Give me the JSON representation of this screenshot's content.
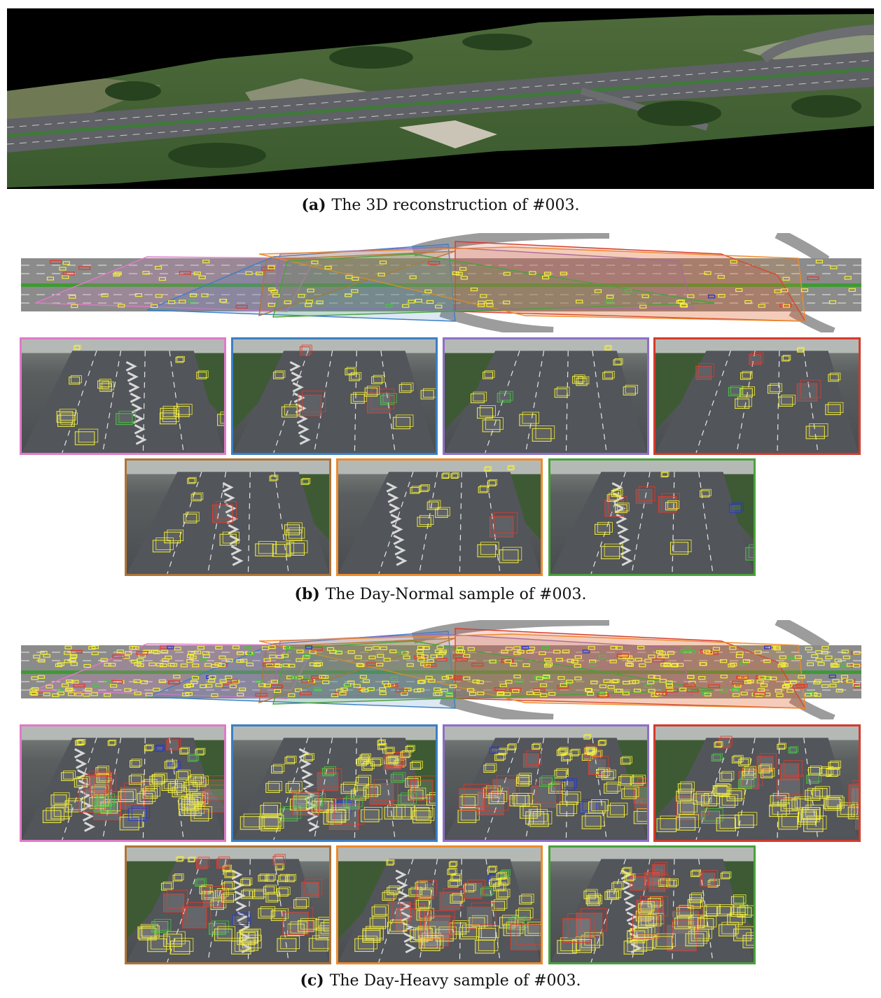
{
  "figure": {
    "captions": [
      {
        "label": "(a)",
        "text": "The 3D reconstruction of #003."
      },
      {
        "label": "(b)",
        "text": "The Day-Normal sample of #003."
      },
      {
        "label": "(c)",
        "text": "The Day-Heavy sample of #003."
      }
    ],
    "camera_colors": [
      "#e07ac9",
      "#3b7fc4",
      "#8e6fc8",
      "#d43a2c",
      "#b07437",
      "#ec8a2b",
      "#4aa23b"
    ],
    "box_colors": {
      "car": "#f2ee3a",
      "truck": "#e23a2c",
      "bus": "#2436d4",
      "van": "#45c640"
    }
  }
}
